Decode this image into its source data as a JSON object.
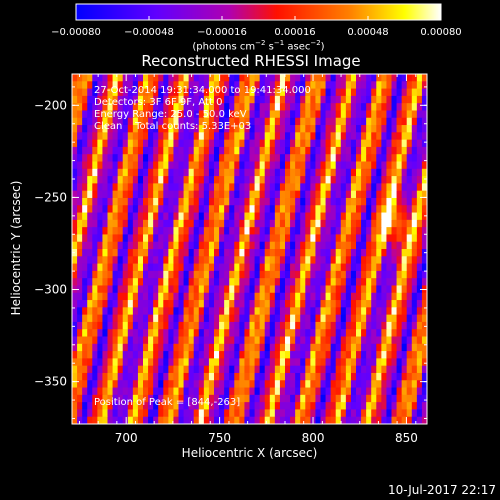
{
  "chart_data": {
    "type": "heatmap",
    "title": "Reconstructed RHESSI Image",
    "xlabel": "Heliocentric X (arcsec)",
    "ylabel": "Heliocentric Y (arcsec)",
    "xlim": [
      671,
      861
    ],
    "ylim": [
      -373,
      -183
    ],
    "x_ticks": [
      700,
      750,
      800,
      850
    ],
    "x_tick_labels": [
      "700",
      "750",
      "800",
      "850"
    ],
    "y_ticks": [
      -200,
      -250,
      -300,
      -350
    ],
    "y_tick_labels": [
      "−200",
      "−250",
      "−300",
      "−350"
    ],
    "colorbar": {
      "range": [
        -0.0008,
        0.0008
      ],
      "tick_values": [
        -0.0008,
        -0.00048,
        -0.00016,
        0.00016,
        0.00048,
        0.0008
      ],
      "tick_labels": [
        "−0.00080",
        "−0.00048",
        "−0.00016",
        "0.00016",
        "0.00048",
        "0.00080"
      ],
      "units_label": "(photons cm^-2 s^-1 asec^-2)",
      "colors": [
        "#0000ff",
        "#8000ff",
        "#c000c0",
        "#ff2000",
        "#ff8000",
        "#ffff00",
        "#ffffff"
      ]
    },
    "annotations": {
      "time_range": "27-Oct-2014 19:31:34.000 to 19:41:34.000",
      "detectors": "Detectors: 3F 6F 9F, Att 0",
      "energy_range": "Energy Range: 25.0 - 50.0 keV",
      "clean_counts": "Clean    Total counts: 5.33E+03",
      "peak_position": "Position of Peak = [844,-263]"
    },
    "peak": [
      844,
      -263
    ],
    "total_counts": 5330,
    "energy_keV": [
      25.0,
      50.0
    ]
  },
  "colorbar_units": {
    "base": "(photons cm",
    "e1": "−2",
    "mid1": " s",
    "e2": "−1",
    "mid2": " asec",
    "e3": "−2",
    "end": ")"
  },
  "footer": {
    "date": "10-Jul-2017 22:17"
  }
}
